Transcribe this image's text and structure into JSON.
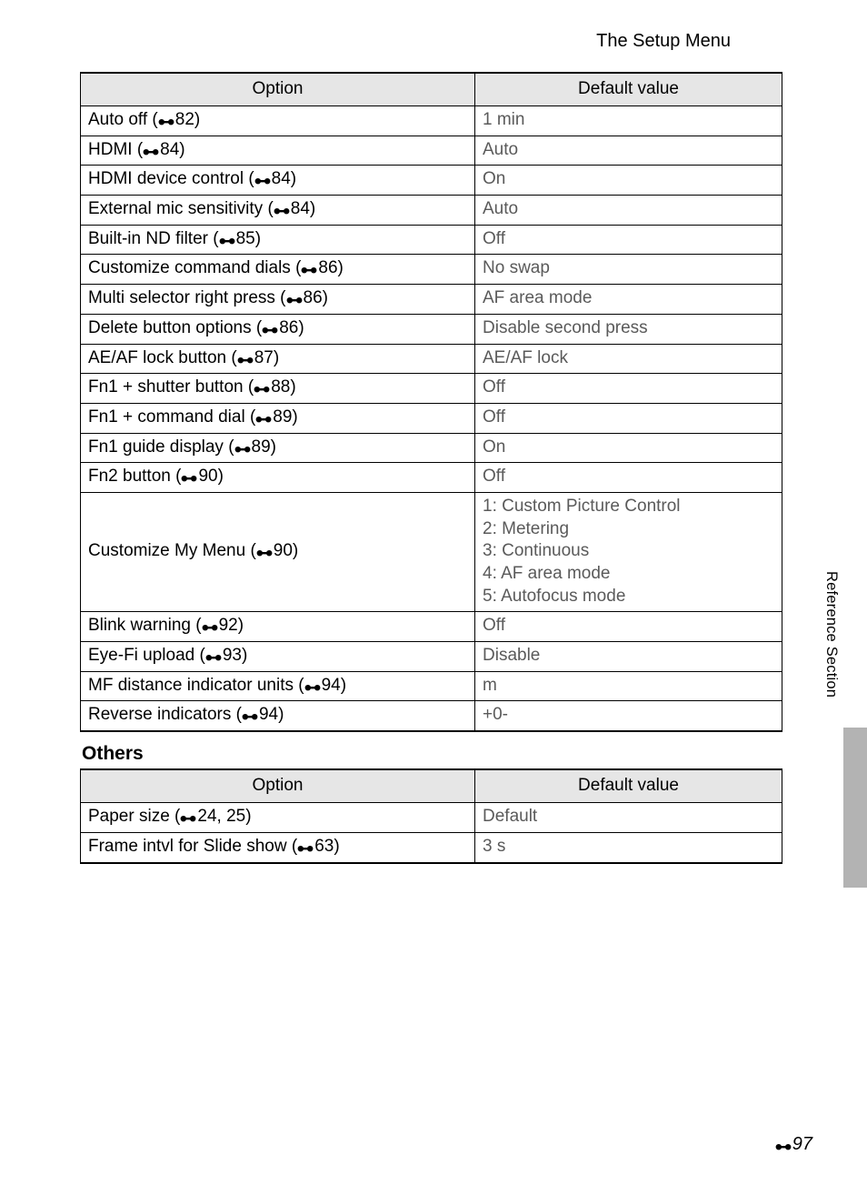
{
  "page_title": "The Setup Menu",
  "side_label": "Reference Section",
  "page_number": "97",
  "table1": {
    "headers": {
      "option": "Option",
      "value": "Default value"
    },
    "rows": [
      {
        "option": "Auto off",
        "ref": "82",
        "value": "1 min"
      },
      {
        "option": "HDMI",
        "ref": "84",
        "value": "Auto"
      },
      {
        "option": "HDMI device control",
        "ref": "84",
        "value": "On"
      },
      {
        "option": "External mic sensitivity",
        "ref": "84",
        "value": "Auto"
      },
      {
        "option": "Built-in ND filter",
        "ref": "85",
        "value": "Off"
      },
      {
        "option": "Customize command dials",
        "ref": "86",
        "value": "No swap"
      },
      {
        "option": "Multi selector right press",
        "ref": "86",
        "value": "AF area mode"
      },
      {
        "option": "Delete button options",
        "ref": "86",
        "value": "Disable second press"
      },
      {
        "option": "AE/AF lock button",
        "ref": "87",
        "value": "AE/AF lock"
      },
      {
        "option": "Fn1 + shutter button",
        "ref": "88",
        "value": "Off"
      },
      {
        "option": "Fn1 + command dial",
        "ref": "89",
        "value": "Off"
      },
      {
        "option": "Fn1 guide display",
        "ref": "89",
        "value": "On"
      },
      {
        "option": "Fn2 button",
        "ref": "90",
        "value": "Off"
      },
      {
        "option": "Customize My Menu",
        "ref": "90",
        "value": "1: Custom Picture Control\n2: Metering\n3: Continuous\n4: AF area mode\n5: Autofocus mode"
      },
      {
        "option": "Blink warning",
        "ref": "92",
        "value": "Off"
      },
      {
        "option": "Eye-Fi upload",
        "ref": "93",
        "value": "Disable"
      },
      {
        "option": "MF distance indicator units",
        "ref": "94",
        "value": "m"
      },
      {
        "option": "Reverse indicators",
        "ref": "94",
        "value": "+0-"
      }
    ]
  },
  "section2_title": "Others",
  "table2": {
    "headers": {
      "option": "Option",
      "value": "Default value"
    },
    "rows": [
      {
        "option": "Paper size",
        "ref": "24, 25",
        "value": "Default"
      },
      {
        "option": "Frame intvl for Slide show",
        "ref": "63",
        "value": "3 s"
      }
    ]
  },
  "colors": {
    "header_bg": "#e6e6e6",
    "value_text": "#5a5a5a",
    "side_tab": "#b3b3b3"
  }
}
